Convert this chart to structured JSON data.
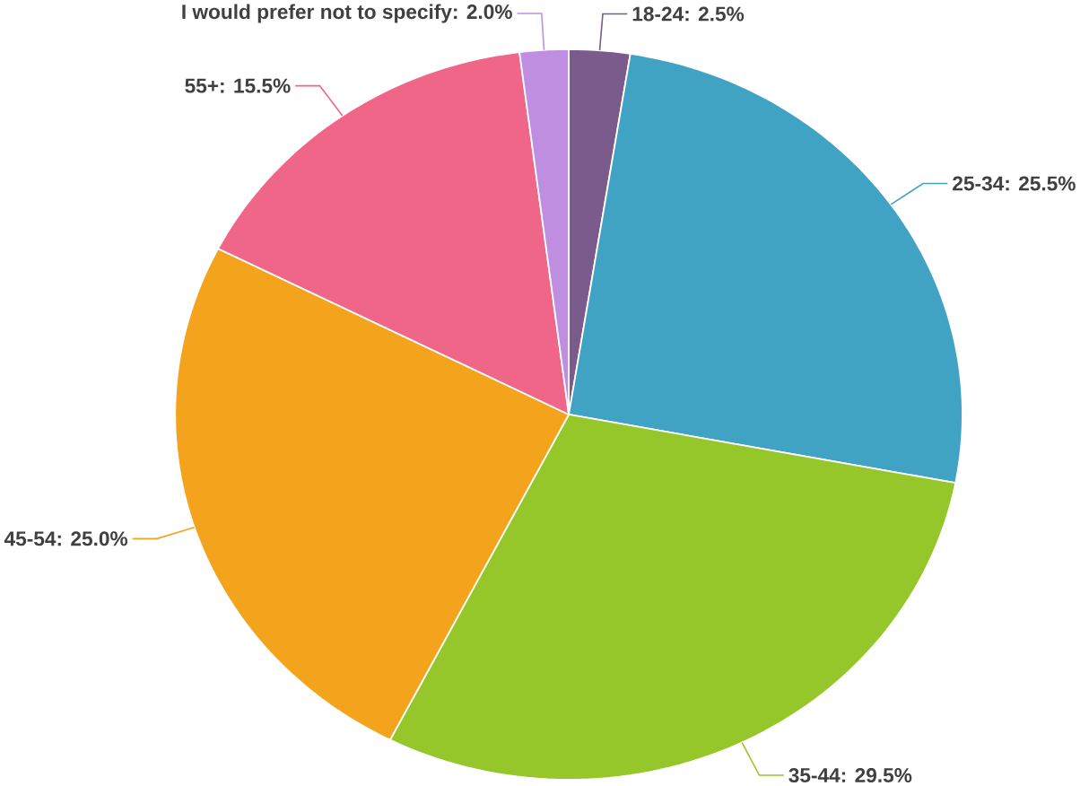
{
  "chart_data": {
    "type": "pie",
    "categories": [
      "18-24",
      "25-34",
      "35-44",
      "45-54",
      "55+",
      "I would prefer not to specify"
    ],
    "values": [
      2.5,
      25.5,
      29.5,
      25.0,
      15.5,
      2.0
    ],
    "value_labels": [
      ": 2.5%",
      ": 25.5%",
      ": 29.5%",
      ": 25.0%",
      ": 15.5%",
      ": 2.0%"
    ],
    "colors": [
      "#7b5a8c",
      "#41a3c4",
      "#96c72a",
      "#f4a41c",
      "#ef6689",
      "#c08ee0"
    ]
  }
}
